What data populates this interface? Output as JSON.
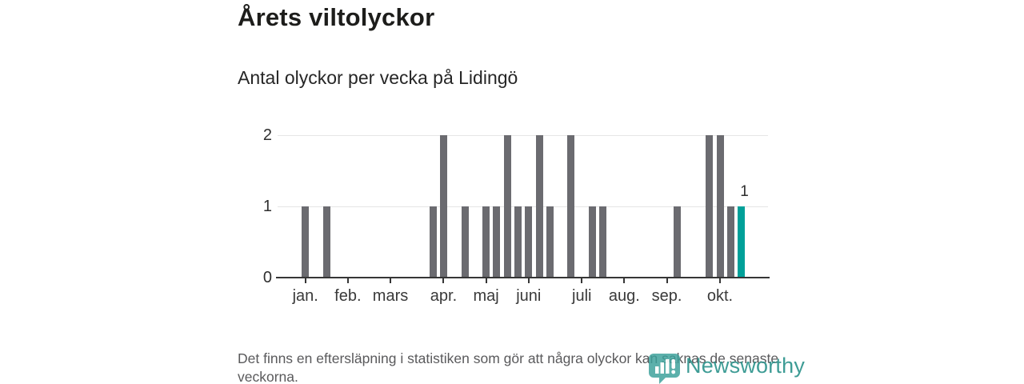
{
  "header": {
    "title": "Årets viltolyckor",
    "subtitle": "Antal olyckor per vecka på Lidingö"
  },
  "footer": {
    "note": "Det finns en eftersläpning i statistiken som gör att några olyckor kan saknas de senaste veckorna."
  },
  "branding": {
    "wordmark": "Newsworthy",
    "icon": "newsworthy-pin-barchart-icon",
    "color": "#2e948d"
  },
  "chart_data": {
    "type": "bar",
    "title": "Årets viltolyckor",
    "subtitle": "Antal olyckor per vecka på Lidingö",
    "x_unit": "vecka (week of year)",
    "x": [
      1,
      2,
      3,
      4,
      5,
      6,
      7,
      8,
      9,
      10,
      11,
      12,
      13,
      14,
      15,
      16,
      17,
      18,
      19,
      20,
      21,
      22,
      23,
      24,
      25,
      26,
      27,
      28,
      29,
      30,
      31,
      32,
      33,
      34,
      35,
      36,
      37,
      38,
      39,
      40,
      41,
      42
    ],
    "values": [
      1,
      0,
      1,
      0,
      0,
      0,
      0,
      0,
      0,
      0,
      0,
      0,
      1,
      2,
      0,
      1,
      0,
      1,
      1,
      2,
      1,
      1,
      2,
      1,
      0,
      2,
      0,
      1,
      1,
      0,
      0,
      0,
      0,
      0,
      0,
      1,
      0,
      0,
      2,
      2,
      1,
      1
    ],
    "ylim": [
      0,
      2
    ],
    "yticks": [
      0,
      1,
      2
    ],
    "grid": "horizontal",
    "legend": "none",
    "bar_color": "#6b6b70",
    "highlight_week": 42,
    "highlight_color": "#00a099",
    "highlight_value_label": "1",
    "month_ticks": [
      {
        "label": "jan.",
        "week": 1
      },
      {
        "label": "feb.",
        "week": 5
      },
      {
        "label": "mars",
        "week": 9
      },
      {
        "label": "apr.",
        "week": 14
      },
      {
        "label": "maj",
        "week": 18
      },
      {
        "label": "juni",
        "week": 22
      },
      {
        "label": "juli",
        "week": 27
      },
      {
        "label": "aug.",
        "week": 31
      },
      {
        "label": "sep.",
        "week": 35
      },
      {
        "label": "okt.",
        "week": 40
      }
    ]
  }
}
